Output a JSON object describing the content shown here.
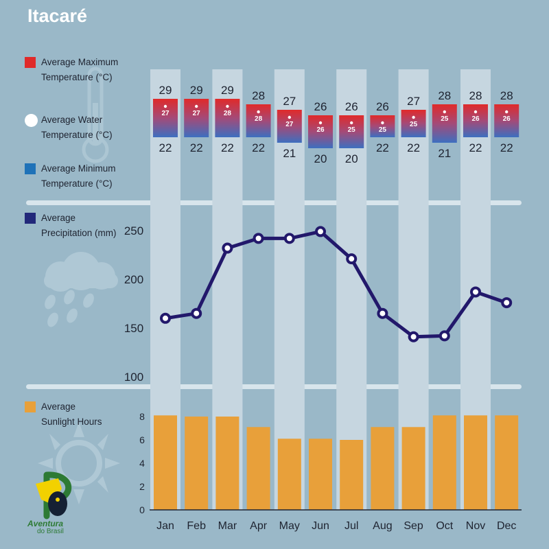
{
  "title": "Itacaré",
  "legend": {
    "max_temp": {
      "line1": "Average Maximum",
      "line2": "Temperature (°C)",
      "color": "#e02a2a"
    },
    "water_temp": {
      "line1": "Average Water",
      "line2": "Temperature (°C)",
      "color": "#ffffff"
    },
    "min_temp": {
      "line1": "Average Minimum",
      "line2": "Temperature (°C)",
      "color": "#1f72b8"
    },
    "precip": {
      "line1": "Average",
      "line2": "Precipitation (mm)",
      "color": "#22287a"
    },
    "sun": {
      "line1": "Average",
      "line2": "Sunlight Hours",
      "color": "#e8a03a"
    }
  },
  "logo": {
    "line1": "Aventura",
    "line2": "do Brasil"
  },
  "chart_data": [
    {
      "type": "bar",
      "name": "temperature",
      "categories": [
        "Jan",
        "Feb",
        "Mar",
        "Apr",
        "May",
        "Jun",
        "Jul",
        "Aug",
        "Sep",
        "Oct",
        "Nov",
        "Dec"
      ],
      "series": [
        {
          "name": "Average Maximum Temperature (°C)",
          "values": [
            29,
            29,
            29,
            28,
            27,
            26,
            26,
            26,
            27,
            28,
            28,
            28
          ]
        },
        {
          "name": "Average Water Temperature (°C)",
          "values": [
            27,
            27,
            28,
            28,
            27,
            26,
            25,
            25,
            25,
            25,
            26,
            26
          ]
        },
        {
          "name": "Average Minimum Temperature (°C)",
          "values": [
            22,
            22,
            22,
            22,
            21,
            20,
            20,
            22,
            22,
            21,
            22,
            22
          ]
        }
      ]
    },
    {
      "type": "line",
      "name": "precipitation",
      "categories": [
        "Jan",
        "Feb",
        "Mar",
        "Apr",
        "May",
        "Jun",
        "Jul",
        "Aug",
        "Sep",
        "Oct",
        "Nov",
        "Dec"
      ],
      "series": [
        {
          "name": "Average Precipitation (mm)",
          "values": [
            160,
            165,
            232,
            242,
            242,
            249,
            221,
            165,
            141,
            142,
            187,
            176
          ]
        }
      ],
      "yticks": [
        100,
        150,
        200,
        250
      ],
      "ylim": [
        100,
        250
      ]
    },
    {
      "type": "bar",
      "name": "sunlight",
      "categories": [
        "Jan",
        "Feb",
        "Mar",
        "Apr",
        "May",
        "Jun",
        "Jul",
        "Aug",
        "Sep",
        "Oct",
        "Nov",
        "Dec"
      ],
      "series": [
        {
          "name": "Average Sunlight Hours",
          "values": [
            8.1,
            8.0,
            8.0,
            7.1,
            6.1,
            6.1,
            6.0,
            7.1,
            7.1,
            8.1,
            8.1,
            8.1
          ]
        }
      ],
      "yticks": [
        0,
        2,
        4,
        6,
        8
      ],
      "ylim": [
        0,
        8
      ]
    }
  ]
}
